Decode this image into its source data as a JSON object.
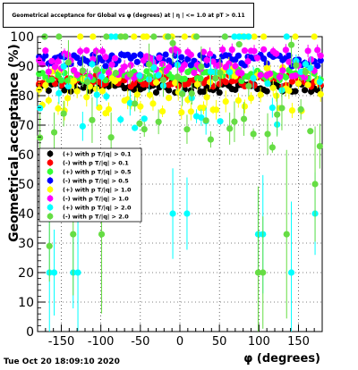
{
  "chart_data": {
    "type": "scatter",
    "title": "Geometrical acceptance for Global vs φ (degrees) at | η | <= 1.0 at pT > 0.11",
    "xlabel": "φ (degrees)",
    "ylabel": "Geometrical acceptance (%)",
    "xlim": [
      -180,
      180
    ],
    "ylim": [
      0,
      100
    ],
    "x_ticks": [
      -150,
      -100,
      -50,
      0,
      50,
      100,
      150
    ],
    "y_ticks": [
      0,
      10,
      20,
      30,
      40,
      50,
      60,
      70,
      80,
      90,
      100
    ],
    "grid": true,
    "legend_position": "middle-left",
    "series": [
      {
        "name": "(+) with p T/|q| > 0.1",
        "color": "#000000",
        "marker": "circle",
        "base": 83,
        "spread": 2,
        "dips": [],
        "bins": 90
      },
      {
        "name": "(-) with p T/|q| > 0.1",
        "color": "#ff0000",
        "marker": "circle",
        "base": 85,
        "spread": 2,
        "dips": [],
        "bins": 90
      },
      {
        "name": "(+) with p T/|q| > 0.5",
        "color": "#33ff33",
        "marker": "circle",
        "base": 87,
        "spread": 2,
        "dips": [],
        "bins": 90
      },
      {
        "name": "(-) with p T/|q| > 0.5",
        "color": "#0000ff",
        "marker": "circle",
        "base": 92,
        "spread": 2,
        "dips": [],
        "bins": 90
      },
      {
        "name": "(+) with p T/|q| > 1.0",
        "color": "#ffff00",
        "marker": "circle",
        "base": 82,
        "spread": 8,
        "dips": [],
        "bins": 90
      },
      {
        "name": "(-) with p T/|q| > 1.0",
        "color": "#ff00ff",
        "marker": "circle",
        "base": 91,
        "spread": 5,
        "dips": [],
        "bins": 90
      },
      {
        "name": "(+) with p T/|q| > 2.0",
        "color": "#00ffff",
        "marker": "circle",
        "base": 80,
        "spread": 12,
        "dips": [
          [
            -162,
            20
          ],
          [
            -132,
            20
          ],
          [
            -10,
            40
          ],
          [
            8,
            40
          ],
          [
            103,
            33
          ],
          [
            138,
            20
          ],
          [
            172,
            40
          ]
        ],
        "bins": 60
      },
      {
        "name": "(-) with p T/|q| > 2.0",
        "color": "#66dd44",
        "marker": "circle",
        "base": 78,
        "spread": 20,
        "dips": [
          [
            -165,
            29
          ],
          [
            -135,
            33
          ],
          [
            -100,
            33
          ],
          [
            102,
            20
          ],
          [
            136,
            33
          ],
          [
            170,
            50
          ]
        ],
        "bins": 60
      }
    ]
  },
  "timestamp": "Tue Oct 20 18:09:10 2020"
}
